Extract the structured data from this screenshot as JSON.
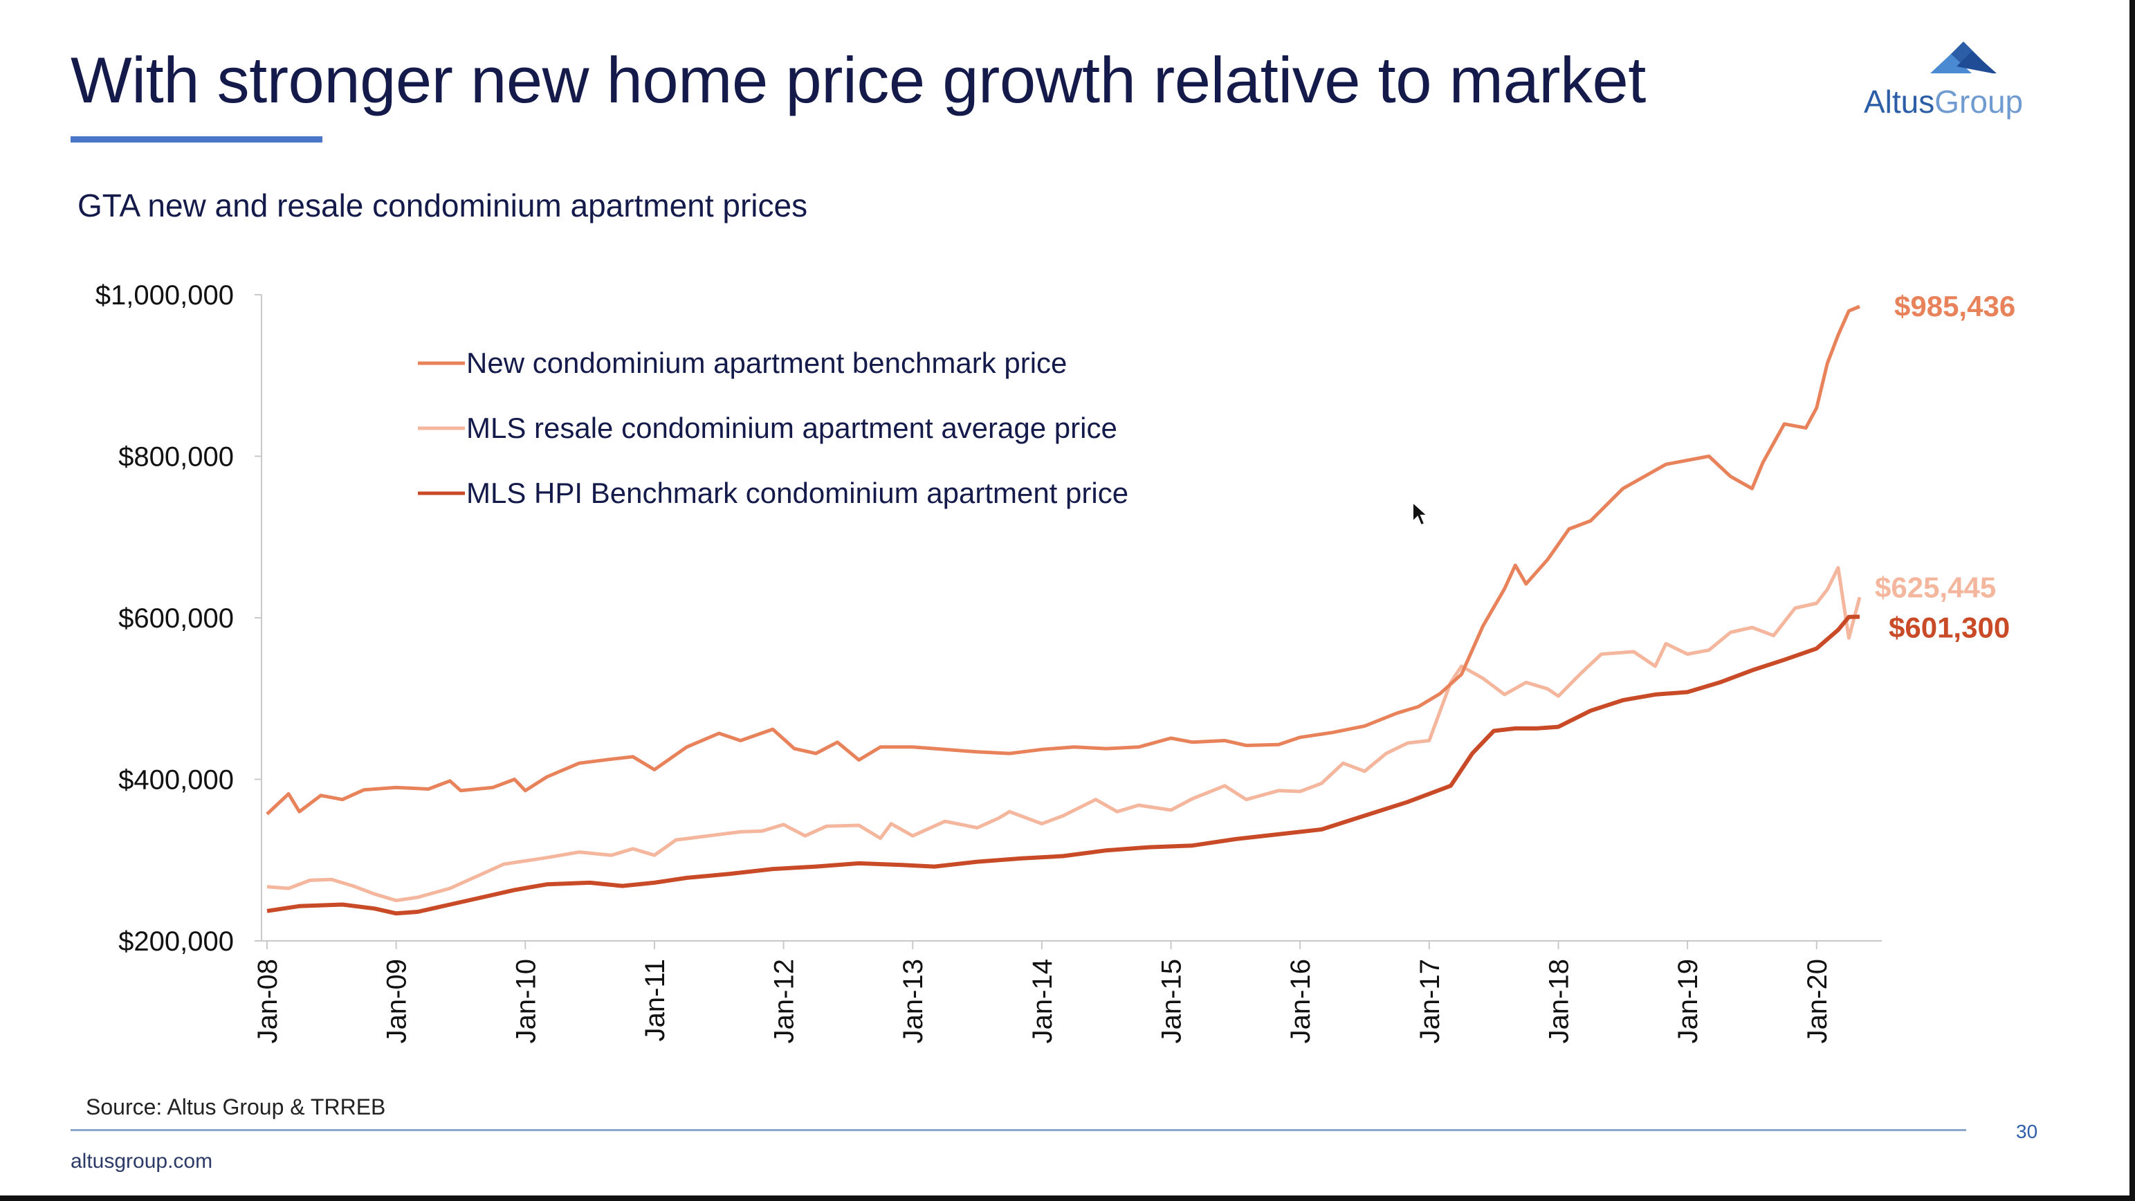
{
  "slide": {
    "title": "With stronger new home price growth relative to market",
    "subtitle": "GTA new and resale condominium apartment prices",
    "source": "Source: Altus Group & TRREB",
    "website": "altusgroup.com",
    "page_number": "30",
    "logo_text": "AltusGroup"
  },
  "colors": {
    "title": "#141a4a",
    "accent": "#4a77c7",
    "new_series": "#e8825a",
    "resale_series": "#f4b69c",
    "hpi_series": "#c94a26"
  },
  "chart_data": {
    "type": "line",
    "ylim": [
      200000,
      1000000
    ],
    "y_ticks": [
      200000,
      400000,
      600000,
      800000,
      1000000
    ],
    "y_tick_labels": [
      "$200,000",
      "$400,000",
      "$600,000",
      "$800,000",
      "$1,000,000"
    ],
    "x_range": [
      "Jan-08",
      "May-20"
    ],
    "x_tick_labels": [
      "Jan-08",
      "Jan-09",
      "Jan-10",
      "Jan-11",
      "Jan-12",
      "Jan-13",
      "Jan-14",
      "Jan-15",
      "Jan-16",
      "Jan-17",
      "Jan-18",
      "Jan-19",
      "Jan-20"
    ],
    "grid": false,
    "legend_position": "top-left",
    "series": [
      {
        "name": "New condominium apartment benchmark price",
        "color_key": "new_series",
        "end_label": "$985,436",
        "points": [
          [
            "Jan-08",
            357000
          ],
          [
            "Mar-08",
            382000
          ],
          [
            "Apr-08",
            360000
          ],
          [
            "Jun-08",
            380000
          ],
          [
            "Aug-08",
            375000
          ],
          [
            "Oct-08",
            387000
          ],
          [
            "Jan-09",
            390000
          ],
          [
            "Apr-09",
            388000
          ],
          [
            "Jun-09",
            398000
          ],
          [
            "Jul-09",
            386000
          ],
          [
            "Oct-09",
            390000
          ],
          [
            "Dec-09",
            400000
          ],
          [
            "Jan-10",
            386000
          ],
          [
            "Mar-10",
            403000
          ],
          [
            "Jun-10",
            420000
          ],
          [
            "Sep-10",
            425000
          ],
          [
            "Nov-10",
            428000
          ],
          [
            "Jan-11",
            412000
          ],
          [
            "Apr-11",
            440000
          ],
          [
            "Jul-11",
            457000
          ],
          [
            "Sep-11",
            448000
          ],
          [
            "Dec-11",
            462000
          ],
          [
            "Feb-12",
            438000
          ],
          [
            "Apr-12",
            432000
          ],
          [
            "Jun-12",
            446000
          ],
          [
            "Aug-12",
            424000
          ],
          [
            "Oct-12",
            440000
          ],
          [
            "Jan-13",
            440000
          ],
          [
            "Apr-13",
            437000
          ],
          [
            "Jul-13",
            434000
          ],
          [
            "Oct-13",
            432000
          ],
          [
            "Jan-14",
            437000
          ],
          [
            "Apr-14",
            440000
          ],
          [
            "Jul-14",
            438000
          ],
          [
            "Oct-14",
            440000
          ],
          [
            "Jan-15",
            451000
          ],
          [
            "Mar-15",
            446000
          ],
          [
            "Jun-15",
            448000
          ],
          [
            "Aug-15",
            442000
          ],
          [
            "Nov-15",
            443000
          ],
          [
            "Jan-16",
            452000
          ],
          [
            "Apr-16",
            458000
          ],
          [
            "Jul-16",
            466000
          ],
          [
            "Oct-16",
            482000
          ],
          [
            "Dec-16",
            490000
          ],
          [
            "Feb-17",
            506000
          ],
          [
            "Apr-17",
            530000
          ],
          [
            "Jun-17",
            590000
          ],
          [
            "Aug-17",
            636000
          ],
          [
            "Sep-17",
            665000
          ],
          [
            "Oct-17",
            642000
          ],
          [
            "Dec-17",
            672000
          ],
          [
            "Feb-18",
            710000
          ],
          [
            "Apr-18",
            720000
          ],
          [
            "Jul-18",
            760000
          ],
          [
            "Sep-18",
            775000
          ],
          [
            "Nov-18",
            790000
          ],
          [
            "Jan-19",
            795000
          ],
          [
            "Mar-19",
            800000
          ],
          [
            "May-19",
            775000
          ],
          [
            "Jul-19",
            760000
          ],
          [
            "Aug-19",
            792000
          ],
          [
            "Oct-19",
            840000
          ],
          [
            "Dec-19",
            835000
          ],
          [
            "Jan-20",
            860000
          ],
          [
            "Feb-20",
            915000
          ],
          [
            "Mar-20",
            950000
          ],
          [
            "Apr-20",
            980000
          ],
          [
            "May-20",
            985436
          ]
        ]
      },
      {
        "name": "MLS resale condominium apartment average price",
        "color_key": "resale_series",
        "end_label": "$625,445",
        "points": [
          [
            "Jan-08",
            267000
          ],
          [
            "Mar-08",
            265000
          ],
          [
            "May-08",
            275000
          ],
          [
            "Jul-08",
            276000
          ],
          [
            "Sep-08",
            268000
          ],
          [
            "Nov-08",
            258000
          ],
          [
            "Jan-09",
            250000
          ],
          [
            "Mar-09",
            254000
          ],
          [
            "Jun-09",
            265000
          ],
          [
            "Sep-09",
            283000
          ],
          [
            "Nov-09",
            295000
          ],
          [
            "Jan-10",
            299000
          ],
          [
            "Mar-10",
            303000
          ],
          [
            "Jun-10",
            310000
          ],
          [
            "Sep-10",
            306000
          ],
          [
            "Nov-10",
            314000
          ],
          [
            "Jan-11",
            306000
          ],
          [
            "Mar-11",
            325000
          ],
          [
            "Jun-11",
            330000
          ],
          [
            "Sep-11",
            335000
          ],
          [
            "Nov-11",
            336000
          ],
          [
            "Jan-12",
            344000
          ],
          [
            "Mar-12",
            330000
          ],
          [
            "May-12",
            342000
          ],
          [
            "Aug-12",
            343000
          ],
          [
            "Oct-12",
            327000
          ],
          [
            "Nov-12",
            345000
          ],
          [
            "Jan-13",
            330000
          ],
          [
            "Apr-13",
            348000
          ],
          [
            "Jul-13",
            340000
          ],
          [
            "Sep-13",
            352000
          ],
          [
            "Oct-13",
            360000
          ],
          [
            "Jan-14",
            345000
          ],
          [
            "Mar-14",
            355000
          ],
          [
            "Jun-14",
            375000
          ],
          [
            "Aug-14",
            360000
          ],
          [
            "Oct-14",
            368000
          ],
          [
            "Jan-15",
            362000
          ],
          [
            "Mar-15",
            376000
          ],
          [
            "Jun-15",
            392000
          ],
          [
            "Aug-15",
            375000
          ],
          [
            "Nov-15",
            386000
          ],
          [
            "Jan-16",
            385000
          ],
          [
            "Mar-16",
            395000
          ],
          [
            "May-16",
            420000
          ],
          [
            "Jul-16",
            410000
          ],
          [
            "Sep-16",
            432000
          ],
          [
            "Nov-16",
            445000
          ],
          [
            "Jan-17",
            448000
          ],
          [
            "Mar-17",
            520000
          ],
          [
            "Apr-17",
            540000
          ],
          [
            "Jun-17",
            525000
          ],
          [
            "Aug-17",
            505000
          ],
          [
            "Oct-17",
            520000
          ],
          [
            "Dec-17",
            512000
          ],
          [
            "Jan-18",
            503000
          ],
          [
            "Mar-18",
            530000
          ],
          [
            "May-18",
            555000
          ],
          [
            "Aug-18",
            558000
          ],
          [
            "Oct-18",
            540000
          ],
          [
            "Nov-18",
            568000
          ],
          [
            "Jan-19",
            555000
          ],
          [
            "Mar-19",
            560000
          ],
          [
            "May-19",
            582000
          ],
          [
            "Jul-19",
            588000
          ],
          [
            "Sep-19",
            578000
          ],
          [
            "Nov-19",
            612000
          ],
          [
            "Jan-20",
            618000
          ],
          [
            "Feb-20",
            635000
          ],
          [
            "Mar-20",
            662000
          ],
          [
            "Apr-20",
            575000
          ],
          [
            "May-20",
            625445
          ]
        ]
      },
      {
        "name": "MLS HPI Benchmark condominium apartment price",
        "color_key": "hpi_series",
        "end_label": "$601,300",
        "points": [
          [
            "Jan-08",
            237000
          ],
          [
            "Apr-08",
            243000
          ],
          [
            "Aug-08",
            245000
          ],
          [
            "Nov-08",
            240000
          ],
          [
            "Jan-09",
            234000
          ],
          [
            "Mar-09",
            236000
          ],
          [
            "Jun-09",
            245000
          ],
          [
            "Sep-09",
            254000
          ],
          [
            "Dec-09",
            263000
          ],
          [
            "Mar-10",
            270000
          ],
          [
            "Jul-10",
            272000
          ],
          [
            "Oct-10",
            268000
          ],
          [
            "Jan-11",
            272000
          ],
          [
            "Apr-11",
            278000
          ],
          [
            "Aug-11",
            283000
          ],
          [
            "Dec-11",
            289000
          ],
          [
            "Apr-12",
            292000
          ],
          [
            "Aug-12",
            296000
          ],
          [
            "Dec-12",
            294000
          ],
          [
            "Mar-13",
            292000
          ],
          [
            "Jul-13",
            298000
          ],
          [
            "Nov-13",
            302000
          ],
          [
            "Mar-14",
            305000
          ],
          [
            "Jul-14",
            312000
          ],
          [
            "Nov-14",
            316000
          ],
          [
            "Mar-15",
            318000
          ],
          [
            "Jul-15",
            326000
          ],
          [
            "Nov-15",
            332000
          ],
          [
            "Mar-16",
            338000
          ],
          [
            "Jul-16",
            355000
          ],
          [
            "Nov-16",
            372000
          ],
          [
            "Mar-17",
            392000
          ],
          [
            "May-17",
            432000
          ],
          [
            "Jul-17",
            460000
          ],
          [
            "Sep-17",
            463000
          ],
          [
            "Nov-17",
            463000
          ],
          [
            "Jan-18",
            465000
          ],
          [
            "Apr-18",
            485000
          ],
          [
            "Jul-18",
            498000
          ],
          [
            "Oct-18",
            505000
          ],
          [
            "Jan-19",
            508000
          ],
          [
            "Apr-19",
            520000
          ],
          [
            "Jul-19",
            535000
          ],
          [
            "Oct-19",
            548000
          ],
          [
            "Jan-20",
            562000
          ],
          [
            "Mar-20",
            585000
          ],
          [
            "Apr-20",
            601000
          ],
          [
            "May-20",
            601300
          ]
        ]
      }
    ]
  }
}
